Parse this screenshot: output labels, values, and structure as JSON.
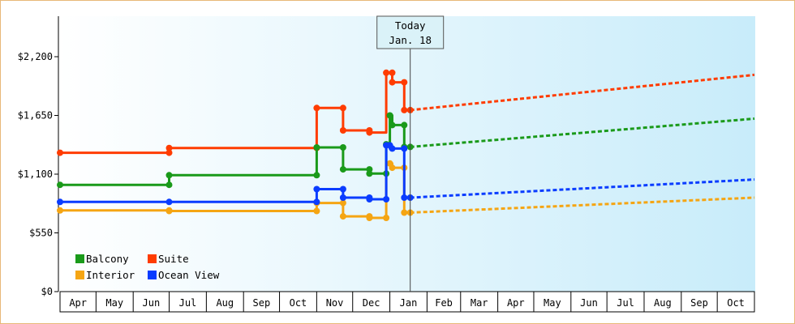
{
  "chart_data": {
    "type": "line",
    "title": "",
    "xlabel": "",
    "ylabel": "",
    "x_ticks": [
      "Apr",
      "May",
      "Jun",
      "Jul",
      "Aug",
      "Sep",
      "Oct",
      "Nov",
      "Dec",
      "Jan",
      "Feb",
      "Mar",
      "Apr",
      "May",
      "Jun",
      "Jul",
      "Aug",
      "Sep",
      "Oct"
    ],
    "y_ticks": [
      "$0",
      "$550",
      "$1,100",
      "$1,650",
      "$2,200"
    ],
    "ylim": [
      0,
      2200
    ],
    "xlim": [
      "2016-04-01",
      "2017-11-01"
    ],
    "today_label": "Today",
    "today_date": "Jan. 18",
    "today_x": "2017-01-18",
    "background_colors": [
      "#ffffff",
      "#c8ecfa"
    ],
    "legend": {
      "position": "bottom-left",
      "entries": [
        {
          "label": "Balcony",
          "color": "#1a9a1a"
        },
        {
          "label": "Suite",
          "color": "#ff3c00"
        },
        {
          "label": "Interior",
          "color": "#f5a513"
        },
        {
          "label": "Ocean View",
          "color": "#0a3cff"
        }
      ]
    },
    "series": [
      {
        "name": "Suite",
        "color": "#ff3c00",
        "history": [
          [
            "2016-04-01",
            1300
          ],
          [
            "2016-07-01",
            1300
          ],
          [
            "2016-07-01",
            1345
          ],
          [
            "2016-11-01",
            1345
          ],
          [
            "2016-11-01",
            1720
          ],
          [
            "2016-11-23",
            1720
          ],
          [
            "2016-11-23",
            1510
          ],
          [
            "2016-12-15",
            1510
          ],
          [
            "2016-12-15",
            1490
          ],
          [
            "2016-12-29",
            1490
          ],
          [
            "2016-12-29",
            2050
          ],
          [
            "2017-01-03",
            2050
          ],
          [
            "2017-01-03",
            1960
          ],
          [
            "2017-01-13",
            1960
          ],
          [
            "2017-01-13",
            1700
          ],
          [
            "2017-01-18",
            1700
          ]
        ],
        "markers": [
          [
            "2016-04-01",
            1300
          ],
          [
            "2016-07-01",
            1300
          ],
          [
            "2016-07-01",
            1345
          ],
          [
            "2016-11-01",
            1345
          ],
          [
            "2016-11-01",
            1720
          ],
          [
            "2016-11-23",
            1720
          ],
          [
            "2016-11-23",
            1510
          ],
          [
            "2016-12-15",
            1510
          ],
          [
            "2016-12-15",
            1490
          ],
          [
            "2016-12-29",
            2050
          ],
          [
            "2017-01-03",
            2050
          ],
          [
            "2017-01-03",
            1960
          ],
          [
            "2017-01-13",
            1960
          ],
          [
            "2017-01-13",
            1700
          ],
          [
            "2017-01-18",
            1700
          ]
        ],
        "forecast": [
          [
            "2017-01-18",
            1700
          ],
          [
            "2017-11-01",
            2030
          ]
        ]
      },
      {
        "name": "Balcony",
        "color": "#1a9a1a",
        "history": [
          [
            "2016-04-01",
            1000
          ],
          [
            "2016-07-01",
            1000
          ],
          [
            "2016-07-01",
            1090
          ],
          [
            "2016-11-01",
            1090
          ],
          [
            "2016-11-01",
            1350
          ],
          [
            "2016-11-23",
            1350
          ],
          [
            "2016-11-23",
            1145
          ],
          [
            "2016-12-15",
            1145
          ],
          [
            "2016-12-15",
            1105
          ],
          [
            "2016-12-29",
            1105
          ],
          [
            "2016-12-29",
            1380
          ],
          [
            "2017-01-01",
            1380
          ],
          [
            "2017-01-01",
            1650
          ],
          [
            "2017-01-03",
            1650
          ],
          [
            "2017-01-03",
            1560
          ],
          [
            "2017-01-13",
            1560
          ],
          [
            "2017-01-13",
            1355
          ],
          [
            "2017-01-18",
            1355
          ]
        ],
        "markers": [
          [
            "2016-04-01",
            1000
          ],
          [
            "2016-07-01",
            1000
          ],
          [
            "2016-07-01",
            1090
          ],
          [
            "2016-11-01",
            1090
          ],
          [
            "2016-11-01",
            1350
          ],
          [
            "2016-11-23",
            1350
          ],
          [
            "2016-11-23",
            1145
          ],
          [
            "2016-12-15",
            1145
          ],
          [
            "2016-12-15",
            1105
          ],
          [
            "2016-12-29",
            1105
          ],
          [
            "2016-12-29",
            1380
          ],
          [
            "2017-01-01",
            1650
          ],
          [
            "2017-01-03",
            1560
          ],
          [
            "2017-01-13",
            1560
          ],
          [
            "2017-01-13",
            1355
          ],
          [
            "2017-01-18",
            1355
          ]
        ],
        "forecast": [
          [
            "2017-01-18",
            1355
          ],
          [
            "2017-11-01",
            1620
          ]
        ]
      },
      {
        "name": "Interior",
        "color": "#f5a513",
        "history": [
          [
            "2016-04-01",
            760
          ],
          [
            "2016-07-01",
            760
          ],
          [
            "2016-07-01",
            755
          ],
          [
            "2016-11-01",
            755
          ],
          [
            "2016-11-01",
            830
          ],
          [
            "2016-11-23",
            830
          ],
          [
            "2016-11-23",
            705
          ],
          [
            "2016-12-15",
            705
          ],
          [
            "2016-12-15",
            690
          ],
          [
            "2016-12-29",
            690
          ],
          [
            "2016-12-29",
            1200
          ],
          [
            "2017-01-03",
            1200
          ],
          [
            "2017-01-03",
            1160
          ],
          [
            "2017-01-13",
            1160
          ],
          [
            "2017-01-13",
            740
          ],
          [
            "2017-01-18",
            740
          ]
        ],
        "markers": [
          [
            "2016-04-01",
            760
          ],
          [
            "2016-07-01",
            760
          ],
          [
            "2016-07-01",
            755
          ],
          [
            "2016-11-01",
            755
          ],
          [
            "2016-11-01",
            830
          ],
          [
            "2016-11-23",
            830
          ],
          [
            "2016-11-23",
            705
          ],
          [
            "2016-12-15",
            705
          ],
          [
            "2016-12-15",
            690
          ],
          [
            "2016-12-29",
            690
          ],
          [
            "2017-01-01",
            1200
          ],
          [
            "2017-01-03",
            1160
          ],
          [
            "2017-01-13",
            1160
          ],
          [
            "2017-01-13",
            740
          ],
          [
            "2017-01-18",
            740
          ]
        ],
        "forecast": [
          [
            "2017-01-18",
            740
          ],
          [
            "2017-11-01",
            880
          ]
        ]
      },
      {
        "name": "Ocean View",
        "color": "#0a3cff",
        "history": [
          [
            "2016-04-01",
            840
          ],
          [
            "2016-07-01",
            840
          ],
          [
            "2016-11-01",
            840
          ],
          [
            "2016-11-01",
            960
          ],
          [
            "2016-11-23",
            960
          ],
          [
            "2016-11-23",
            880
          ],
          [
            "2016-12-15",
            880
          ],
          [
            "2016-12-15",
            865
          ],
          [
            "2016-12-29",
            865
          ],
          [
            "2016-12-29",
            1370
          ],
          [
            "2017-01-01",
            1370
          ],
          [
            "2017-01-01",
            1340
          ],
          [
            "2017-01-13",
            1340
          ],
          [
            "2017-01-13",
            880
          ],
          [
            "2017-01-18",
            880
          ]
        ],
        "markers": [
          [
            "2016-04-01",
            840
          ],
          [
            "2016-07-01",
            840
          ],
          [
            "2016-11-01",
            840
          ],
          [
            "2016-11-01",
            960
          ],
          [
            "2016-11-23",
            960
          ],
          [
            "2016-11-23",
            880
          ],
          [
            "2016-12-15",
            880
          ],
          [
            "2016-12-15",
            865
          ],
          [
            "2016-12-29",
            865
          ],
          [
            "2016-12-29",
            1370
          ],
          [
            "2017-01-01",
            1370
          ],
          [
            "2017-01-03",
            1340
          ],
          [
            "2017-01-13",
            1340
          ],
          [
            "2017-01-13",
            880
          ],
          [
            "2017-01-18",
            880
          ]
        ],
        "forecast": [
          [
            "2017-01-18",
            880
          ],
          [
            "2017-11-01",
            1050
          ]
        ]
      }
    ]
  }
}
